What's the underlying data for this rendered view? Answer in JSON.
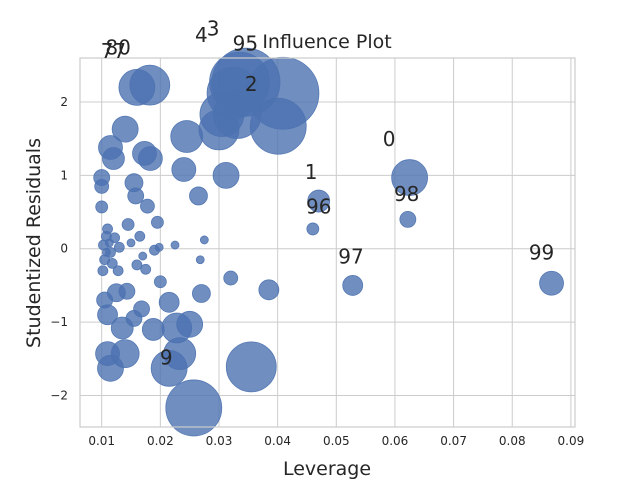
{
  "chart_data": {
    "type": "scatter",
    "title": "Influence Plot",
    "xlabel": "Leverage",
    "ylabel": "Studentized Residuals",
    "xlim": [
      0.0063,
      0.0907
    ],
    "ylim": [
      -2.43,
      2.6
    ],
    "grid": true,
    "x_ticks": [
      0.01,
      0.02,
      0.03,
      0.04,
      0.05,
      0.06,
      0.07,
      0.08,
      0.09
    ],
    "x_tick_labels": [
      "0.01",
      "0.02",
      "0.03",
      "0.04",
      "0.05",
      "0.06",
      "0.07",
      "0.08",
      "0.09"
    ],
    "y_ticks": [
      -2,
      -1,
      0,
      1,
      2
    ],
    "y_tick_labels": [
      "−2",
      "−1",
      "0",
      "1",
      "2"
    ],
    "points": [
      {
        "x": 0.0409,
        "y": 2.12,
        "r": 36
      },
      {
        "x": 0.0346,
        "y": 2.27,
        "r": 34
      },
      {
        "x": 0.0335,
        "y": 2.27,
        "r": 30
      },
      {
        "x": 0.0401,
        "y": 1.67,
        "r": 28
      },
      {
        "x": 0.0324,
        "y": 2.12,
        "r": 26
      },
      {
        "x": 0.0257,
        "y": -2.17,
        "r": 28
      },
      {
        "x": 0.0355,
        "y": -1.61,
        "r": 25
      },
      {
        "x": 0.0331,
        "y": 1.83,
        "r": 24
      },
      {
        "x": 0.0305,
        "y": 1.83,
        "r": 22
      },
      {
        "x": 0.03,
        "y": 1.62,
        "r": 20
      },
      {
        "x": 0.0182,
        "y": 2.23,
        "r": 20
      },
      {
        "x": 0.016,
        "y": 2.2,
        "r": 18
      },
      {
        "x": 0.0215,
        "y": -1.63,
        "r": 18
      },
      {
        "x": 0.0233,
        "y": -1.43,
        "r": 16
      },
      {
        "x": 0.0245,
        "y": 1.53,
        "r": 16
      },
      {
        "x": 0.0625,
        "y": 0.97,
        "r": 18
      },
      {
        "x": 0.0228,
        "y": -1.08,
        "r": 15
      },
      {
        "x": 0.025,
        "y": -1.03,
        "r": 13
      },
      {
        "x": 0.014,
        "y": 1.63,
        "r": 13
      },
      {
        "x": 0.0173,
        "y": 1.3,
        "r": 12
      },
      {
        "x": 0.0183,
        "y": 1.23,
        "r": 12
      },
      {
        "x": 0.014,
        "y": -1.43,
        "r": 14
      },
      {
        "x": 0.0115,
        "y": -1.63,
        "r": 13
      },
      {
        "x": 0.011,
        "y": -1.43,
        "r": 12
      },
      {
        "x": 0.0135,
        "y": -1.08,
        "r": 11
      },
      {
        "x": 0.0188,
        "y": -1.1,
        "r": 11
      },
      {
        "x": 0.024,
        "y": 1.08,
        "r": 12
      },
      {
        "x": 0.0312,
        "y": 1.0,
        "r": 13
      },
      {
        "x": 0.0115,
        "y": 1.38,
        "r": 12
      },
      {
        "x": 0.012,
        "y": 1.23,
        "r": 11
      },
      {
        "x": 0.047,
        "y": 0.65,
        "r": 11
      },
      {
        "x": 0.0215,
        "y": -0.73,
        "r": 10
      },
      {
        "x": 0.027,
        "y": -0.61,
        "r": 9
      },
      {
        "x": 0.0385,
        "y": -0.56,
        "r": 10
      },
      {
        "x": 0.0528,
        "y": -0.5,
        "r": 10
      },
      {
        "x": 0.0867,
        "y": -0.47,
        "r": 12
      },
      {
        "x": 0.0265,
        "y": 0.72,
        "r": 9
      },
      {
        "x": 0.0155,
        "y": 0.9,
        "r": 9
      },
      {
        "x": 0.011,
        "y": -0.9,
        "r": 10
      },
      {
        "x": 0.0125,
        "y": -0.6,
        "r": 9
      },
      {
        "x": 0.0143,
        "y": -0.58,
        "r": 8
      },
      {
        "x": 0.0105,
        "y": -0.7,
        "r": 8
      },
      {
        "x": 0.0155,
        "y": -0.95,
        "r": 8
      },
      {
        "x": 0.0168,
        "y": -0.82,
        "r": 8
      },
      {
        "x": 0.0622,
        "y": 0.4,
        "r": 8
      },
      {
        "x": 0.01,
        "y": 0.97,
        "r": 8
      },
      {
        "x": 0.0158,
        "y": 0.72,
        "r": 8
      },
      {
        "x": 0.0178,
        "y": 0.58,
        "r": 7
      },
      {
        "x": 0.01,
        "y": 0.85,
        "r": 7
      },
      {
        "x": 0.01,
        "y": 0.57,
        "r": 6
      },
      {
        "x": 0.0145,
        "y": 0.33,
        "r": 6
      },
      {
        "x": 0.0195,
        "y": 0.36,
        "r": 6
      },
      {
        "x": 0.02,
        "y": -0.45,
        "r": 6
      },
      {
        "x": 0.032,
        "y": -0.4,
        "r": 7
      },
      {
        "x": 0.046,
        "y": 0.27,
        "r": 6
      },
      {
        "x": 0.011,
        "y": 0.27,
        "r": 5
      },
      {
        "x": 0.0103,
        "y": 0.05,
        "r": 5
      },
      {
        "x": 0.0108,
        "y": 0.17,
        "r": 5
      },
      {
        "x": 0.0115,
        "y": -0.05,
        "r": 5
      },
      {
        "x": 0.0122,
        "y": 0.15,
        "r": 5
      },
      {
        "x": 0.013,
        "y": 0.02,
        "r": 5
      },
      {
        "x": 0.015,
        "y": 0.08,
        "r": 4
      },
      {
        "x": 0.0165,
        "y": 0.17,
        "r": 5
      },
      {
        "x": 0.0105,
        "y": -0.15,
        "r": 5
      },
      {
        "x": 0.0118,
        "y": -0.2,
        "r": 5
      },
      {
        "x": 0.0102,
        "y": -0.3,
        "r": 5
      },
      {
        "x": 0.0128,
        "y": -0.3,
        "r": 5
      },
      {
        "x": 0.016,
        "y": -0.22,
        "r": 5
      },
      {
        "x": 0.0175,
        "y": -0.28,
        "r": 5
      },
      {
        "x": 0.019,
        "y": -0.02,
        "r": 5
      },
      {
        "x": 0.017,
        "y": -0.1,
        "r": 4
      },
      {
        "x": 0.0198,
        "y": 0.02,
        "r": 4
      },
      {
        "x": 0.0225,
        "y": 0.05,
        "r": 4
      },
      {
        "x": 0.0275,
        "y": 0.12,
        "r": 4
      },
      {
        "x": 0.0268,
        "y": -0.15,
        "r": 4
      },
      {
        "x": 0.0108,
        "y": -0.05,
        "r": 4
      },
      {
        "x": 0.0113,
        "y": 0.08,
        "r": 4
      }
    ],
    "annotations": [
      {
        "text": "77",
        "x": 0.012,
        "y": 2.6
      },
      {
        "text": "80",
        "x": 0.0128,
        "y": 2.65
      },
      {
        "text": "4",
        "x": 0.027,
        "y": 2.82
      },
      {
        "text": "3",
        "x": 0.029,
        "y": 2.91
      },
      {
        "text": "95",
        "x": 0.0345,
        "y": 2.7
      },
      {
        "text": "2",
        "x": 0.0355,
        "y": 2.15
      },
      {
        "text": "0",
        "x": 0.059,
        "y": 1.4
      },
      {
        "text": "1",
        "x": 0.0457,
        "y": 0.95
      },
      {
        "text": "98",
        "x": 0.062,
        "y": 0.65
      },
      {
        "text": "96",
        "x": 0.047,
        "y": 0.48
      },
      {
        "text": "97",
        "x": 0.0525,
        "y": -0.2
      },
      {
        "text": "99",
        "x": 0.085,
        "y": -0.15
      },
      {
        "text": "9",
        "x": 0.021,
        "y": -1.58
      }
    ]
  }
}
